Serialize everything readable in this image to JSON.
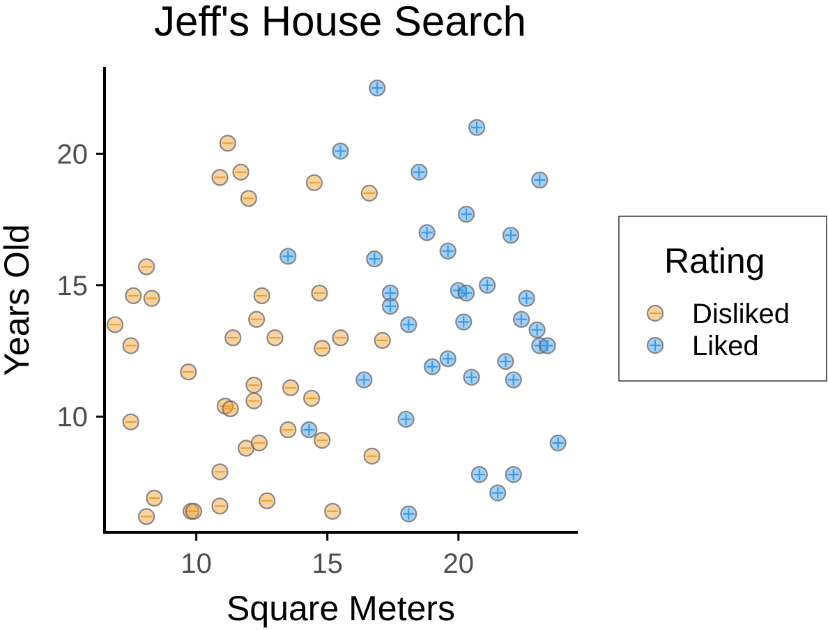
{
  "chart_data": {
    "type": "scatter",
    "title": "Jeff's House Search",
    "xlabel": "Square Meters",
    "ylabel": "Years Old",
    "xlim": [
      6.5,
      24.5
    ],
    "ylim": [
      5.6,
      23.3
    ],
    "x_ticks": [
      10,
      15,
      20
    ],
    "y_ticks": [
      10,
      15,
      20
    ],
    "grid": false,
    "legend": {
      "title": "Rating",
      "position": "right"
    },
    "series": [
      {
        "name": "Disliked",
        "color": "#f0a030",
        "glyph": "minus",
        "points": [
          [
            11.2,
            20.4
          ],
          [
            11.7,
            19.3
          ],
          [
            10.9,
            19.1
          ],
          [
            12.0,
            18.3
          ],
          [
            14.5,
            18.9
          ],
          [
            16.6,
            18.5
          ],
          [
            8.1,
            15.7
          ],
          [
            7.6,
            14.6
          ],
          [
            8.3,
            14.5
          ],
          [
            12.5,
            14.6
          ],
          [
            14.7,
            14.7
          ],
          [
            6.9,
            13.5
          ],
          [
            7.5,
            12.7
          ],
          [
            11.4,
            13.0
          ],
          [
            12.3,
            13.7
          ],
          [
            13.0,
            13.0
          ],
          [
            14.8,
            12.6
          ],
          [
            15.5,
            13.0
          ],
          [
            17.1,
            12.9
          ],
          [
            9.7,
            11.7
          ],
          [
            12.2,
            11.2
          ],
          [
            12.2,
            10.6
          ],
          [
            13.6,
            11.1
          ],
          [
            14.4,
            10.7
          ],
          [
            11.1,
            10.4
          ],
          [
            11.3,
            10.3
          ],
          [
            7.5,
            9.8
          ],
          [
            13.5,
            9.5
          ],
          [
            14.8,
            9.1
          ],
          [
            11.9,
            8.8
          ],
          [
            12.4,
            9.0
          ],
          [
            16.7,
            8.5
          ],
          [
            10.9,
            7.9
          ],
          [
            8.4,
            6.9
          ],
          [
            8.1,
            6.2
          ],
          [
            9.8,
            6.4
          ],
          [
            9.9,
            6.4
          ],
          [
            10.9,
            6.6
          ],
          [
            12.7,
            6.8
          ],
          [
            15.2,
            6.4
          ]
        ]
      },
      {
        "name": "Liked",
        "color": "#3a9ae8",
        "glyph": "plus",
        "points": [
          [
            16.9,
            22.5
          ],
          [
            20.7,
            21.0
          ],
          [
            15.5,
            20.1
          ],
          [
            18.5,
            19.3
          ],
          [
            23.1,
            19.0
          ],
          [
            20.3,
            17.7
          ],
          [
            18.8,
            17.0
          ],
          [
            22.0,
            16.9
          ],
          [
            19.6,
            16.3
          ],
          [
            13.5,
            16.1
          ],
          [
            16.8,
            16.0
          ],
          [
            17.4,
            14.7
          ],
          [
            17.4,
            14.2
          ],
          [
            20.0,
            14.8
          ],
          [
            20.3,
            14.7
          ],
          [
            21.1,
            15.0
          ],
          [
            22.6,
            14.5
          ],
          [
            22.4,
            13.7
          ],
          [
            20.2,
            13.6
          ],
          [
            18.1,
            13.5
          ],
          [
            23.0,
            13.3
          ],
          [
            23.1,
            12.7
          ],
          [
            23.4,
            12.7
          ],
          [
            19.6,
            12.2
          ],
          [
            19.0,
            11.9
          ],
          [
            21.8,
            12.1
          ],
          [
            16.4,
            11.4
          ],
          [
            20.5,
            11.5
          ],
          [
            22.1,
            11.4
          ],
          [
            18.0,
            9.9
          ],
          [
            14.3,
            9.5
          ],
          [
            23.8,
            9.0
          ],
          [
            20.8,
            7.8
          ],
          [
            22.1,
            7.8
          ],
          [
            21.5,
            7.1
          ],
          [
            18.1,
            6.3
          ]
        ]
      }
    ]
  }
}
